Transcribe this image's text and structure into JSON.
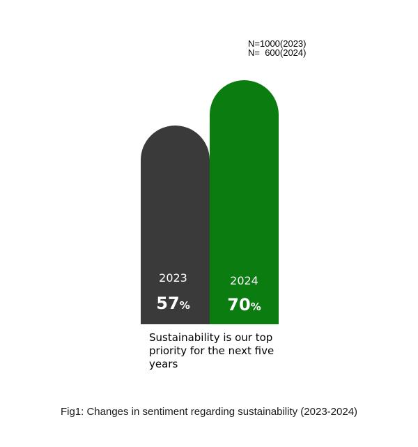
{
  "sample_note": {
    "line1": "N=1000(2023)",
    "line2": "N=  600(2024)"
  },
  "chart_data": {
    "type": "bar",
    "title": "",
    "xlabel": "",
    "ylabel": "",
    "ylim": [
      0,
      100
    ],
    "unit": "%",
    "categories": [
      "2023",
      "2024"
    ],
    "values": [
      57,
      70
    ],
    "colors": [
      "#3a3a3a",
      "#0a7c10"
    ],
    "category_label": "Sustainability is our top priority for the next five years"
  },
  "caption": "Fig1: Changes in sentiment regarding sustainability (2023-2024)"
}
